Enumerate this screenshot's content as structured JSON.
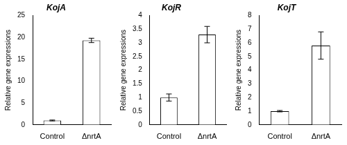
{
  "chart_data": [
    {
      "type": "bar",
      "title": "KojA",
      "y_label": "Relative gene expressions",
      "categories": [
        "Control",
        "ΔnrtA"
      ],
      "values": [
        1.0,
        19.3
      ],
      "errors": [
        0.1,
        0.5
      ],
      "color": "#ffffff",
      "ylim": [
        0,
        25
      ],
      "yticks": [
        0,
        5,
        10,
        15,
        20,
        25
      ],
      "grid": false
    },
    {
      "type": "bar",
      "title": "KojR",
      "y_label": "Relative gene expressions",
      "categories": [
        "Control",
        "ΔnrtA"
      ],
      "values": [
        1.0,
        3.3
      ],
      "errors": [
        0.13,
        0.3
      ],
      "color": "#ffffff",
      "ylim": [
        0,
        4
      ],
      "yticks": [
        0,
        0.5,
        1,
        1.5,
        2,
        2.5,
        3,
        3.5,
        4
      ],
      "grid": false
    },
    {
      "type": "bar",
      "title": "KojT",
      "y_label": "Relative gene expressions",
      "categories": [
        "Control",
        "ΔnrtA"
      ],
      "values": [
        1.0,
        5.8
      ],
      "errors": [
        0.05,
        1.0
      ],
      "color": "#ffffff",
      "ylim": [
        0,
        8
      ],
      "yticks": [
        0,
        1,
        2,
        3,
        4,
        5,
        6,
        7,
        8
      ],
      "grid": false
    }
  ]
}
